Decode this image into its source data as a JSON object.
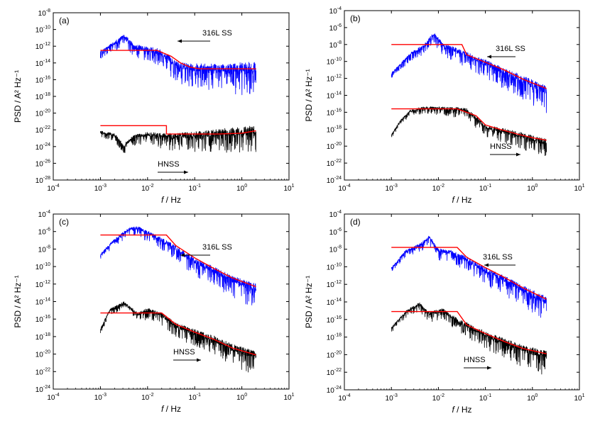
{
  "chart_data": [
    {
      "type": "line",
      "panel": "(a)",
      "xlabel": "f / Hz",
      "ylabel": "PSD / A² Hz⁻¹",
      "xlim_exp": [
        -4,
        1
      ],
      "ylim_exp": [
        -28,
        -8
      ],
      "ytick_step": 2,
      "annotations": [
        {
          "text": "316L SS",
          "arrow": "left"
        },
        {
          "text": "HNSS",
          "arrow": "right"
        }
      ],
      "series": [
        {
          "name": "316L SS PSD",
          "kind": "raw",
          "color": "#0000ff",
          "noise": 1.3,
          "points": [
            [
              -3,
              -12.8
            ],
            [
              -2.6,
              -11.3
            ],
            [
              -2.5,
              -10.8
            ],
            [
              -2.3,
              -12.0
            ],
            [
              -2.1,
              -12.4
            ],
            [
              -1.8,
              -12.6
            ],
            [
              -1.5,
              -13.8
            ],
            [
              -1.3,
              -14.5
            ],
            [
              -1.0,
              -14.7
            ],
            [
              -0.6,
              -14.8
            ],
            [
              0.3,
              -14.8
            ]
          ]
        },
        {
          "name": "316L SS fit",
          "kind": "fit",
          "color": "#ff0000",
          "points": [
            [
              -3,
              -12.5
            ],
            [
              -1.8,
              -12.5
            ],
            [
              -1.5,
              -13.2
            ],
            [
              -1.3,
              -14.0
            ],
            [
              -1.1,
              -14.5
            ],
            [
              -0.9,
              -14.7
            ],
            [
              0.3,
              -14.7
            ]
          ]
        },
        {
          "name": "HNSS PSD",
          "kind": "raw",
          "color": "#000000",
          "noise": 1.1,
          "points": [
            [
              -3,
              -22.3
            ],
            [
              -2.7,
              -22.6
            ],
            [
              -2.5,
              -24.0
            ],
            [
              -2.3,
              -22.9
            ],
            [
              -2.0,
              -22.6
            ],
            [
              -1.5,
              -22.9
            ],
            [
              -1.0,
              -22.7
            ],
            [
              -0.5,
              -22.5
            ],
            [
              0,
              -22.4
            ],
            [
              0.3,
              -22.2
            ]
          ]
        },
        {
          "name": "HNSS fit",
          "kind": "fit",
          "color": "#ff0000",
          "points": [
            [
              -3,
              -21.5
            ],
            [
              -1.6,
              -21.5
            ],
            [
              -1.6,
              -22.5
            ],
            [
              -0.5,
              -22.5
            ],
            [
              0,
              -22.4
            ],
            [
              0.3,
              -22.1
            ]
          ]
        }
      ]
    },
    {
      "type": "line",
      "panel": "(b)",
      "xlabel": "f / Hz",
      "ylabel": "PSD / A² Hz⁻¹",
      "xlim_exp": [
        -4,
        1
      ],
      "ylim_exp": [
        -24,
        -4
      ],
      "ytick_step": 2,
      "annotations": [
        {
          "text": "316L SS",
          "arrow": "left"
        },
        {
          "text": "HNSS",
          "arrow": "right"
        }
      ],
      "series": [
        {
          "name": "316L SS PSD",
          "kind": "raw",
          "color": "#0000ff",
          "noise": 1.0,
          "points": [
            [
              -3,
              -11.5
            ],
            [
              -2.6,
              -9.2
            ],
            [
              -2.3,
              -8.2
            ],
            [
              -2.1,
              -6.8
            ],
            [
              -1.9,
              -8.2
            ],
            [
              -1.6,
              -8.8
            ],
            [
              -1.2,
              -9.8
            ],
            [
              -0.8,
              -10.8
            ],
            [
              -0.4,
              -11.8
            ],
            [
              0,
              -12.8
            ],
            [
              0.3,
              -13.6
            ]
          ]
        },
        {
          "name": "316L SS fit",
          "kind": "fit",
          "color": "#ff0000",
          "points": [
            [
              -3,
              -8.0
            ],
            [
              -1.5,
              -8.0
            ],
            [
              -1.4,
              -9.2
            ],
            [
              -1.0,
              -10.1
            ],
            [
              -0.6,
              -11.0
            ],
            [
              -0.2,
              -12.1
            ],
            [
              0.3,
              -13.2
            ]
          ]
        },
        {
          "name": "HNSS PSD",
          "kind": "raw",
          "color": "#000000",
          "noise": 0.7,
          "points": [
            [
              -3,
              -18.7
            ],
            [
              -2.8,
              -17.0
            ],
            [
              -2.6,
              -15.9
            ],
            [
              -2.3,
              -15.5
            ],
            [
              -1.8,
              -15.6
            ],
            [
              -1.4,
              -15.8
            ],
            [
              -1.2,
              -16.8
            ],
            [
              -1.0,
              -17.8
            ],
            [
              -0.6,
              -18.3
            ],
            [
              -0.3,
              -18.7
            ],
            [
              0,
              -19.2
            ],
            [
              0.3,
              -19.6
            ]
          ]
        },
        {
          "name": "HNSS fit",
          "kind": "fit",
          "color": "#ff0000",
          "points": [
            [
              -3,
              -15.6
            ],
            [
              -1.6,
              -15.6
            ],
            [
              -1.2,
              -16.4
            ],
            [
              -1.0,
              -17.5
            ],
            [
              -0.7,
              -18.0
            ],
            [
              -0.3,
              -18.6
            ],
            [
              0,
              -19.0
            ],
            [
              0.3,
              -19.3
            ]
          ]
        }
      ]
    },
    {
      "type": "line",
      "panel": "(c)",
      "xlabel": "f / Hz",
      "ylabel": "PSD / A² Hz⁻¹",
      "xlim_exp": [
        -4,
        1
      ],
      "ylim_exp": [
        -24,
        -4
      ],
      "ytick_step": 2,
      "annotations": [
        {
          "text": "316L SS",
          "arrow": "left"
        },
        {
          "text": "HNSS",
          "arrow": "right"
        }
      ],
      "series": [
        {
          "name": "316L SS PSD",
          "kind": "raw",
          "color": "#0000ff",
          "noise": 0.9,
          "points": [
            [
              -3,
              -8.7
            ],
            [
              -2.7,
              -7.0
            ],
            [
              -2.4,
              -5.8
            ],
            [
              -2.2,
              -5.6
            ],
            [
              -2.0,
              -6.2
            ],
            [
              -1.7,
              -7.0
            ],
            [
              -1.4,
              -8.0
            ],
            [
              -1.0,
              -9.5
            ],
            [
              -0.6,
              -10.5
            ],
            [
              -0.2,
              -11.6
            ],
            [
              0.3,
              -12.6
            ]
          ]
        },
        {
          "name": "316L SS fit",
          "kind": "fit",
          "color": "#ff0000",
          "points": [
            [
              -3,
              -6.4
            ],
            [
              -1.6,
              -6.4
            ],
            [
              -1.4,
              -7.6
            ],
            [
              -1.0,
              -9.0
            ],
            [
              -0.6,
              -10.2
            ],
            [
              -0.2,
              -11.3
            ],
            [
              0.3,
              -12.3
            ]
          ]
        },
        {
          "name": "HNSS PSD",
          "kind": "raw",
          "color": "#000000",
          "noise": 0.9,
          "points": [
            [
              -3,
              -17.2
            ],
            [
              -2.8,
              -15.0
            ],
            [
              -2.5,
              -14.2
            ],
            [
              -2.2,
              -15.5
            ],
            [
              -2.0,
              -15.0
            ],
            [
              -1.7,
              -15.6
            ],
            [
              -1.4,
              -16.8
            ],
            [
              -1.0,
              -17.6
            ],
            [
              -0.6,
              -18.4
            ],
            [
              -0.2,
              -19.4
            ],
            [
              0.3,
              -20.3
            ]
          ]
        },
        {
          "name": "HNSS fit",
          "kind": "fit",
          "color": "#ff0000",
          "points": [
            [
              -3,
              -15.3
            ],
            [
              -1.7,
              -15.3
            ],
            [
              -1.4,
              -16.6
            ],
            [
              -1.0,
              -17.5
            ],
            [
              -0.6,
              -18.3
            ],
            [
              -0.2,
              -19.3
            ],
            [
              0.3,
              -20.1
            ]
          ]
        }
      ]
    },
    {
      "type": "line",
      "panel": "(d)",
      "xlabel": "f / Hz",
      "ylabel": "PSD / A² Hz⁻¹",
      "xlim_exp": [
        -4,
        1
      ],
      "ylim_exp": [
        -24,
        -4
      ],
      "ytick_step": 2,
      "annotations": [
        {
          "text": "316L SS",
          "arrow": "left"
        },
        {
          "text": "HNSS",
          "arrow": "right"
        }
      ],
      "series": [
        {
          "name": "316L SS PSD",
          "kind": "raw",
          "color": "#0000ff",
          "noise": 0.9,
          "points": [
            [
              -3,
              -10.2
            ],
            [
              -2.7,
              -8.3
            ],
            [
              -2.4,
              -7.6
            ],
            [
              -2.2,
              -6.7
            ],
            [
              -2.0,
              -8.2
            ],
            [
              -1.7,
              -8.5
            ],
            [
              -1.4,
              -9.2
            ],
            [
              -1.0,
              -10.5
            ],
            [
              -0.6,
              -11.5
            ],
            [
              -0.2,
              -12.7
            ],
            [
              0.3,
              -14.0
            ]
          ]
        },
        {
          "name": "316L SS fit",
          "kind": "fit",
          "color": "#ff0000",
          "points": [
            [
              -3,
              -7.8
            ],
            [
              -1.6,
              -7.8
            ],
            [
              -1.4,
              -8.9
            ],
            [
              -1.0,
              -10.1
            ],
            [
              -0.6,
              -11.2
            ],
            [
              -0.2,
              -12.4
            ],
            [
              0.3,
              -13.7
            ]
          ]
        },
        {
          "name": "HNSS PSD",
          "kind": "raw",
          "color": "#000000",
          "noise": 0.9,
          "points": [
            [
              -3,
              -17.0
            ],
            [
              -2.7,
              -15.2
            ],
            [
              -2.4,
              -14.3
            ],
            [
              -2.2,
              -15.4
            ],
            [
              -1.9,
              -15.0
            ],
            [
              -1.6,
              -16.2
            ],
            [
              -1.3,
              -17.0
            ],
            [
              -1.0,
              -17.8
            ],
            [
              -0.6,
              -18.6
            ],
            [
              -0.2,
              -19.5
            ],
            [
              0.3,
              -20.2
            ]
          ]
        },
        {
          "name": "HNSS fit",
          "kind": "fit",
          "color": "#ff0000",
          "points": [
            [
              -3,
              -15.1
            ],
            [
              -1.6,
              -15.1
            ],
            [
              -1.4,
              -16.6
            ],
            [
              -1.0,
              -17.6
            ],
            [
              -0.6,
              -18.5
            ],
            [
              -0.2,
              -19.3
            ],
            [
              0.3,
              -19.9
            ]
          ]
        }
      ]
    }
  ]
}
